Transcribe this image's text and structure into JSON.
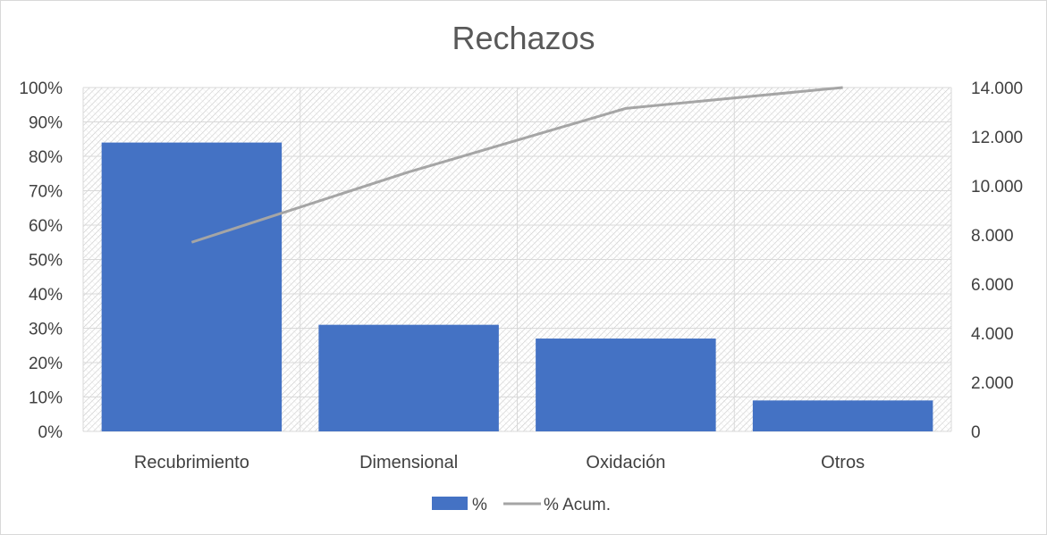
{
  "chart_data": {
    "type": "bar",
    "title": "Rechazos",
    "categories": [
      "Recubrimiento",
      "Dimensional",
      "Oxidación",
      "Otros"
    ],
    "series": [
      {
        "name": "%",
        "type": "bar",
        "axis": "left",
        "values": [
          0.84,
          0.31,
          0.27,
          0.09
        ],
        "color": "#4472C4"
      },
      {
        "name": "% Acum.",
        "type": "line",
        "axis": "right",
        "values": [
          7700,
          10560,
          13150,
          14000
        ],
        "color": "#A5A5A5"
      }
    ],
    "y_left": {
      "ylim": [
        0,
        1
      ],
      "ticks": [
        0,
        0.1,
        0.2,
        0.3,
        0.4,
        0.5,
        0.6,
        0.7,
        0.8,
        0.9,
        1.0
      ],
      "tick_labels": [
        "0%",
        "10%",
        "20%",
        "30%",
        "40%",
        "50%",
        "60%",
        "70%",
        "80%",
        "90%",
        "100%"
      ]
    },
    "y_right": {
      "ylim": [
        0,
        14000
      ],
      "ticks": [
        0,
        2000,
        4000,
        6000,
        8000,
        10000,
        12000,
        14000
      ],
      "tick_labels": [
        "0",
        "2.000",
        "4.000",
        "6.000",
        "8.000",
        "10.000",
        "12.000",
        "14.000"
      ]
    },
    "xlabel": "",
    "ylabel": "",
    "grid": true,
    "plot_background": "hatched",
    "legend": {
      "position": "bottom",
      "entries": [
        "%",
        "% Acum."
      ]
    },
    "colors": {
      "bar": "#4472C4",
      "line": "#A5A5A5",
      "grid": "#d9d9d9",
      "text": "#404040",
      "title": "#595959"
    }
  }
}
